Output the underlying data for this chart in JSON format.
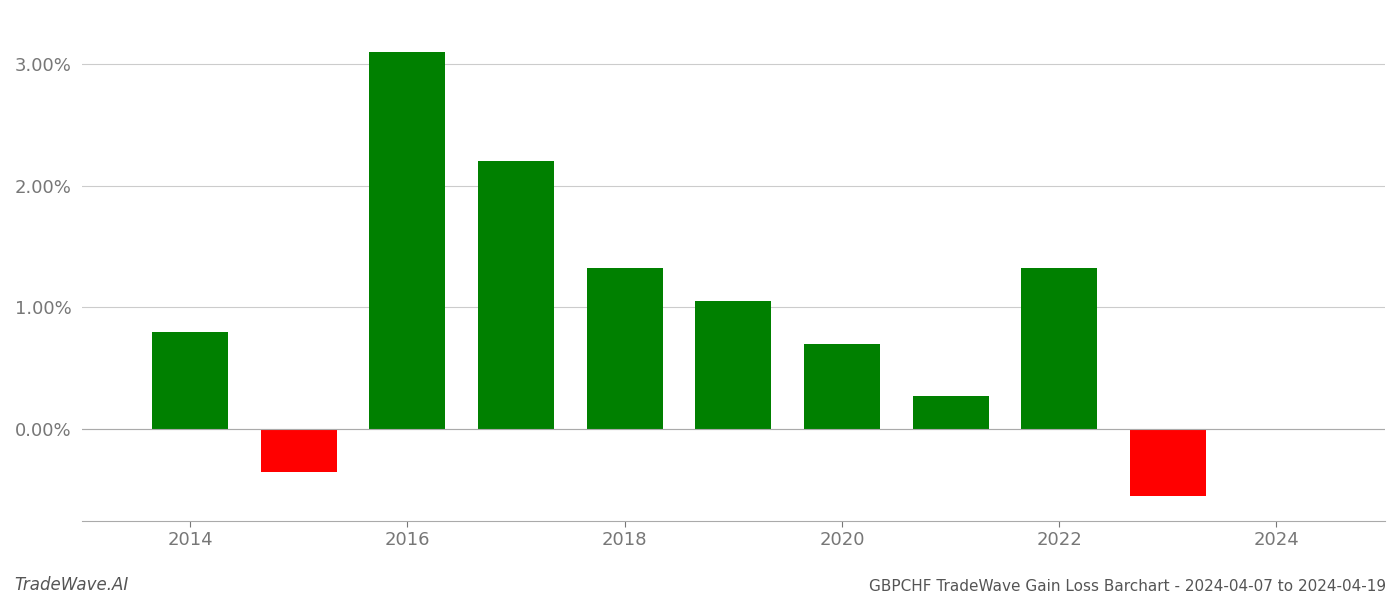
{
  "years": [
    2014,
    2015,
    2016,
    2017,
    2018,
    2019,
    2020,
    2021,
    2022,
    2023
  ],
  "values": [
    0.008,
    -0.0035,
    0.031,
    0.022,
    0.0132,
    0.0105,
    0.007,
    0.0027,
    0.0132,
    -0.0055
  ],
  "colors": [
    "#008000",
    "#ff0000",
    "#008000",
    "#008000",
    "#008000",
    "#008000",
    "#008000",
    "#008000",
    "#008000",
    "#ff0000"
  ],
  "title": "GBPCHF TradeWave Gain Loss Barchart - 2024-04-07 to 2024-04-19",
  "watermark": "TradeWave.AI",
  "xlim_min": 2013.0,
  "xlim_max": 2025.0,
  "ylim_min": -0.0075,
  "ylim_max": 0.034,
  "yticks": [
    0.0,
    0.01,
    0.02,
    0.03
  ],
  "xticks": [
    2014,
    2016,
    2018,
    2020,
    2022,
    2024
  ],
  "background_color": "#ffffff",
  "grid_color": "#cccccc",
  "bar_width": 0.7
}
